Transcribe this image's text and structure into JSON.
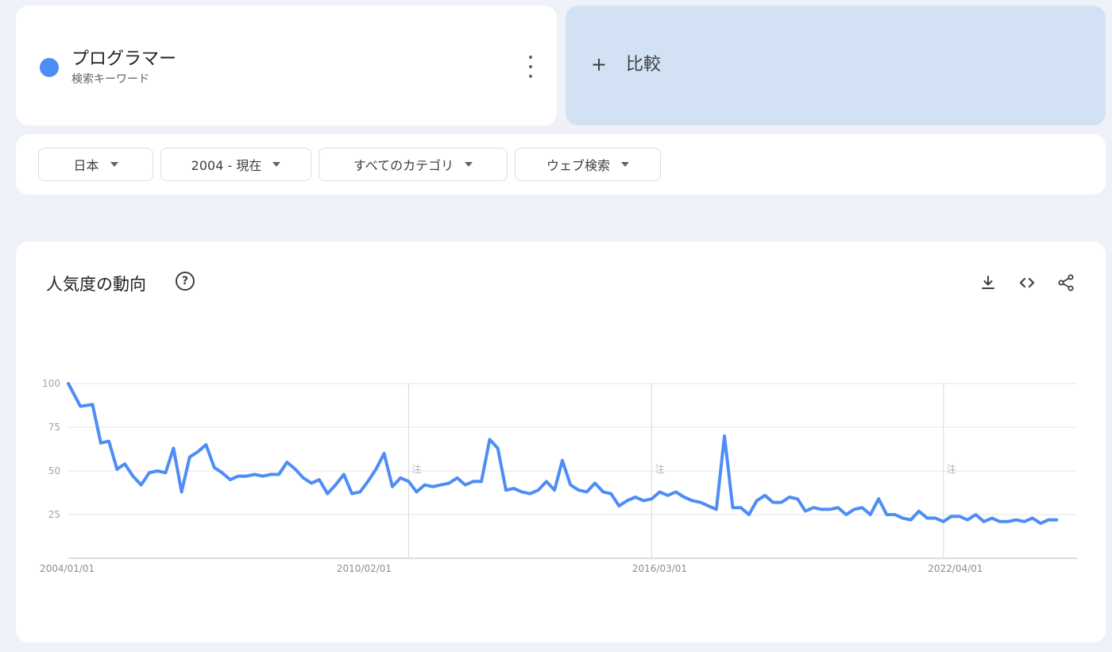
{
  "search_term": {
    "name": "プログラマー",
    "type": "検索キーワード",
    "color": "#4e8df5",
    "more_icon": "more-vert-icon"
  },
  "compare": {
    "plus": "+",
    "label": "比較"
  },
  "filters": {
    "region": "日本",
    "time": "2004 - 現在",
    "category": "すべてのカテゴリ",
    "search_type": "ウェブ検索"
  },
  "chart_section": {
    "title": "人気度の動向",
    "help_icon": "?",
    "actions": [
      "download-icon",
      "embed-icon",
      "share-icon"
    ]
  },
  "chart_data": {
    "type": "line",
    "title": "",
    "xlabel": "",
    "ylabel": "",
    "ylim": [
      0,
      100
    ],
    "yticks": [
      25,
      50,
      75,
      100
    ],
    "x_range": [
      "2004-01-01",
      "2024-10-01"
    ],
    "x_ticks": [
      {
        "date": "2004-01-01",
        "label": "2004/01/01"
      },
      {
        "date": "2010-02-01",
        "label": "2010/02/01"
      },
      {
        "date": "2016-03-01",
        "label": "2016/03/01"
      },
      {
        "date": "2022-04-01",
        "label": "2022/04/01"
      }
    ],
    "annotations": [
      {
        "date": "2011-01-01",
        "label": "注"
      },
      {
        "date": "2016-01-01",
        "label": "注"
      },
      {
        "date": "2022-01-01",
        "label": "注"
      }
    ],
    "grid": true,
    "series": [
      {
        "name": "プログラマー",
        "color": "#4e8df5",
        "points": [
          [
            "2004-01-01",
            100
          ],
          [
            "2004-04-01",
            87
          ],
          [
            "2004-07-01",
            88
          ],
          [
            "2004-09-01",
            66
          ],
          [
            "2004-11-01",
            67
          ],
          [
            "2005-01-01",
            51
          ],
          [
            "2005-03-01",
            54
          ],
          [
            "2005-05-01",
            47
          ],
          [
            "2005-07-01",
            42
          ],
          [
            "2005-09-01",
            49
          ],
          [
            "2005-11-01",
            50
          ],
          [
            "2006-01-01",
            49
          ],
          [
            "2006-03-01",
            63
          ],
          [
            "2006-05-01",
            38
          ],
          [
            "2006-07-01",
            58
          ],
          [
            "2006-09-01",
            61
          ],
          [
            "2006-11-01",
            65
          ],
          [
            "2007-01-01",
            52
          ],
          [
            "2007-03-01",
            49
          ],
          [
            "2007-05-01",
            45
          ],
          [
            "2007-07-01",
            47
          ],
          [
            "2007-09-01",
            47
          ],
          [
            "2007-11-01",
            48
          ],
          [
            "2008-01-01",
            47
          ],
          [
            "2008-03-01",
            48
          ],
          [
            "2008-05-01",
            48
          ],
          [
            "2008-07-01",
            55
          ],
          [
            "2008-09-01",
            51
          ],
          [
            "2008-11-01",
            46
          ],
          [
            "2009-01-01",
            43
          ],
          [
            "2009-03-01",
            45
          ],
          [
            "2009-05-01",
            37
          ],
          [
            "2009-07-01",
            42
          ],
          [
            "2009-09-01",
            48
          ],
          [
            "2009-11-01",
            37
          ],
          [
            "2010-01-01",
            38
          ],
          [
            "2010-03-01",
            44
          ],
          [
            "2010-05-01",
            51
          ],
          [
            "2010-07-01",
            60
          ],
          [
            "2010-09-01",
            41
          ],
          [
            "2010-11-01",
            46
          ],
          [
            "2011-01-01",
            44
          ],
          [
            "2011-03-01",
            38
          ],
          [
            "2011-05-01",
            42
          ],
          [
            "2011-07-01",
            41
          ],
          [
            "2011-09-01",
            42
          ],
          [
            "2011-11-01",
            43
          ],
          [
            "2012-01-01",
            46
          ],
          [
            "2012-03-01",
            42
          ],
          [
            "2012-05-01",
            44
          ],
          [
            "2012-07-01",
            44
          ],
          [
            "2012-09-01",
            68
          ],
          [
            "2012-11-01",
            63
          ],
          [
            "2013-01-01",
            39
          ],
          [
            "2013-03-01",
            40
          ],
          [
            "2013-05-01",
            38
          ],
          [
            "2013-07-01",
            37
          ],
          [
            "2013-09-01",
            39
          ],
          [
            "2013-11-01",
            44
          ],
          [
            "2014-01-01",
            39
          ],
          [
            "2014-03-01",
            56
          ],
          [
            "2014-05-01",
            42
          ],
          [
            "2014-07-01",
            39
          ],
          [
            "2014-09-01",
            38
          ],
          [
            "2014-11-01",
            43
          ],
          [
            "2015-01-01",
            38
          ],
          [
            "2015-03-01",
            37
          ],
          [
            "2015-05-01",
            30
          ],
          [
            "2015-07-01",
            33
          ],
          [
            "2015-09-01",
            35
          ],
          [
            "2015-11-01",
            33
          ],
          [
            "2016-01-01",
            34
          ],
          [
            "2016-03-01",
            38
          ],
          [
            "2016-05-01",
            36
          ],
          [
            "2016-07-01",
            38
          ],
          [
            "2016-09-01",
            35
          ],
          [
            "2016-11-01",
            33
          ],
          [
            "2017-01-01",
            32
          ],
          [
            "2017-03-01",
            30
          ],
          [
            "2017-05-01",
            28
          ],
          [
            "2017-07-01",
            70
          ],
          [
            "2017-09-01",
            29
          ],
          [
            "2017-11-01",
            29
          ],
          [
            "2018-01-01",
            25
          ],
          [
            "2018-03-01",
            33
          ],
          [
            "2018-05-01",
            36
          ],
          [
            "2018-07-01",
            32
          ],
          [
            "2018-09-01",
            32
          ],
          [
            "2018-11-01",
            35
          ],
          [
            "2019-01-01",
            34
          ],
          [
            "2019-03-01",
            27
          ],
          [
            "2019-05-01",
            29
          ],
          [
            "2019-07-01",
            28
          ],
          [
            "2019-09-01",
            28
          ],
          [
            "2019-11-01",
            29
          ],
          [
            "2020-01-01",
            25
          ],
          [
            "2020-03-01",
            28
          ],
          [
            "2020-05-01",
            29
          ],
          [
            "2020-07-01",
            25
          ],
          [
            "2020-09-01",
            34
          ],
          [
            "2020-11-01",
            25
          ],
          [
            "2021-01-01",
            25
          ],
          [
            "2021-03-01",
            23
          ],
          [
            "2021-05-01",
            22
          ],
          [
            "2021-07-01",
            27
          ],
          [
            "2021-09-01",
            23
          ],
          [
            "2021-11-01",
            23
          ],
          [
            "2022-01-01",
            21
          ],
          [
            "2022-03-01",
            24
          ],
          [
            "2022-05-01",
            24
          ],
          [
            "2022-07-01",
            22
          ],
          [
            "2022-09-01",
            25
          ],
          [
            "2022-11-01",
            21
          ],
          [
            "2023-01-01",
            23
          ],
          [
            "2023-03-01",
            21
          ],
          [
            "2023-05-01",
            21
          ],
          [
            "2023-07-01",
            22
          ],
          [
            "2023-09-01",
            21
          ],
          [
            "2023-11-01",
            23
          ],
          [
            "2024-01-01",
            20
          ],
          [
            "2024-03-01",
            22
          ],
          [
            "2024-05-01",
            22
          ]
        ]
      }
    ]
  }
}
